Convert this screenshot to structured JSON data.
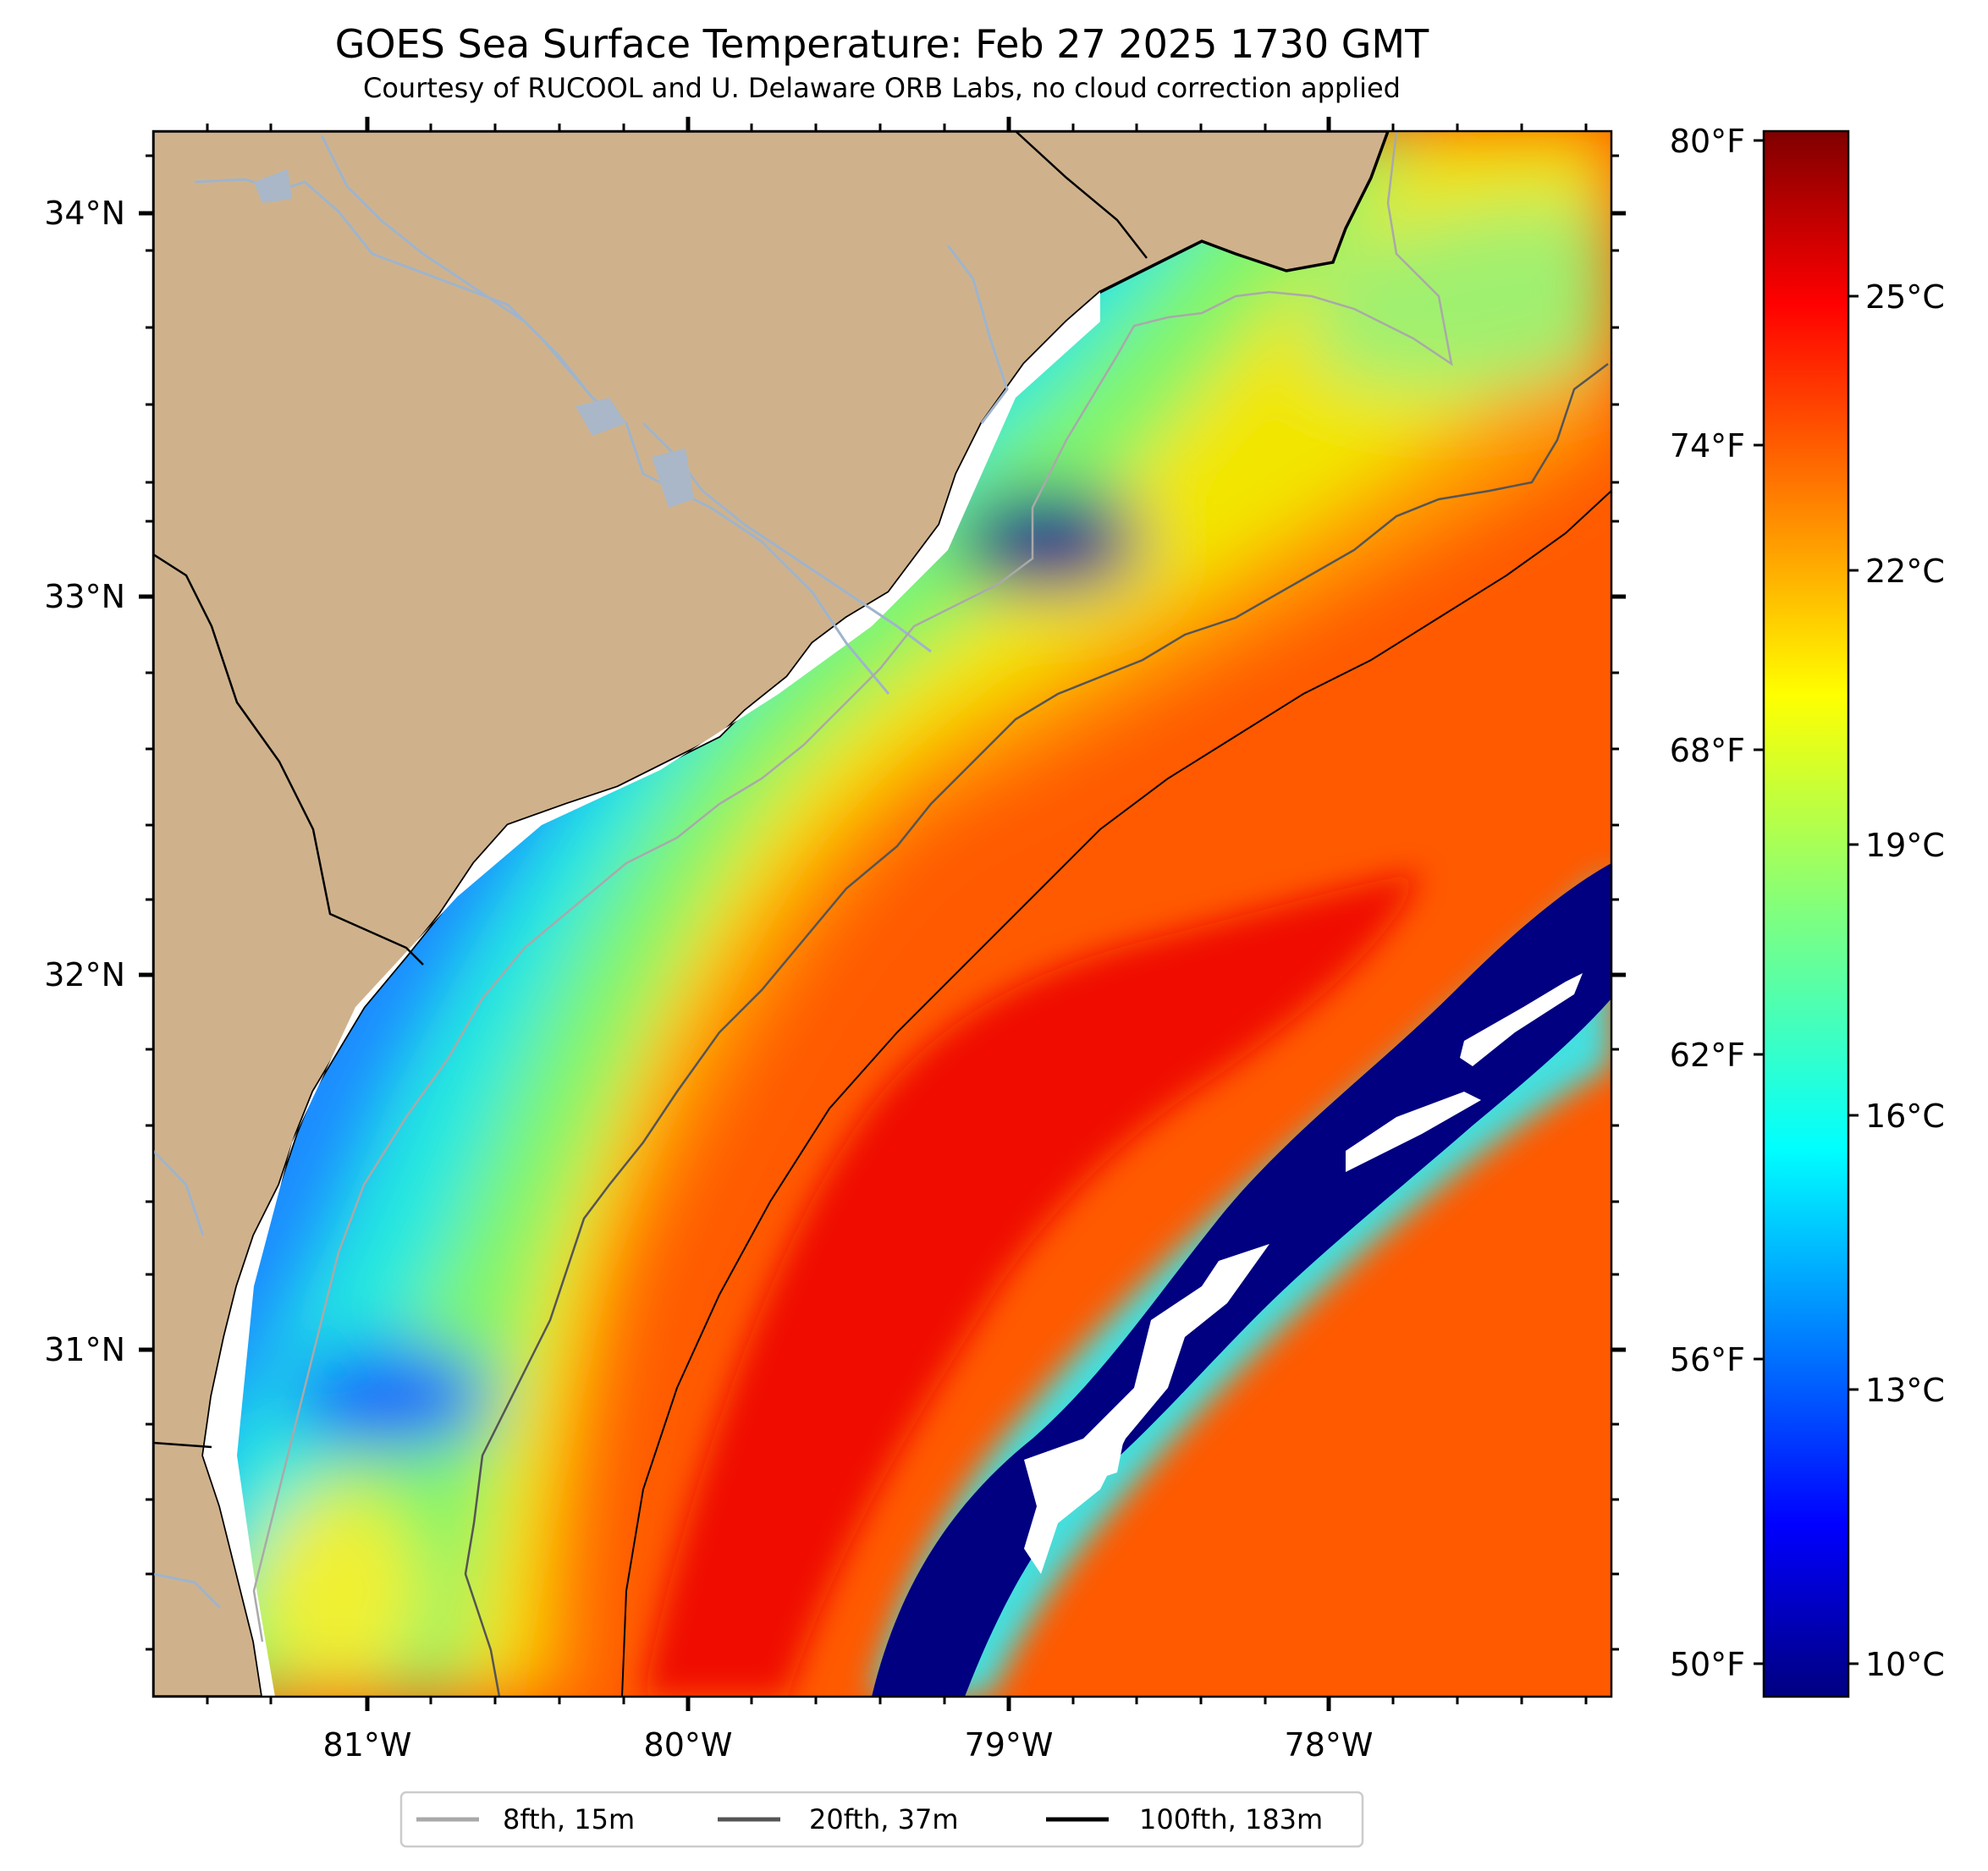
{
  "title": "GOES Sea Surface Temperature: Feb 27 2025 1730 GMT",
  "subtitle": "Courtesy of RUCOOL and U. Delaware ORB Labs, no cloud correction applied",
  "colors": {
    "land": "#cfb28c",
    "river": "#9fb4cc",
    "coast": "#000000",
    "isobath_8fth": "#a9a9a9",
    "isobath_20fth": "#555555",
    "isobath_100fth": "#000000"
  },
  "axes": {
    "lat_labels": [
      "34°N",
      "33°N",
      "32°N",
      "31°N"
    ],
    "lon_labels": [
      "81°W",
      "80°W",
      "79°W",
      "78°W"
    ]
  },
  "colorbar": {
    "f_labels": [
      "80°F",
      "74°F",
      "68°F",
      "62°F",
      "56°F",
      "50°F"
    ],
    "c_labels": [
      "25°C",
      "22°C",
      "19°C",
      "16°C",
      "13°C",
      "10°C"
    ],
    "colormap": "jet",
    "range_c": [
      9.4,
      26.7
    ]
  },
  "legend": {
    "items": [
      {
        "label": "8fth, 15m",
        "color": "#a9a9a9"
      },
      {
        "label": "20fth, 37m",
        "color": "#555555"
      },
      {
        "label": "100fth, 183m",
        "color": "#000000"
      }
    ]
  }
}
